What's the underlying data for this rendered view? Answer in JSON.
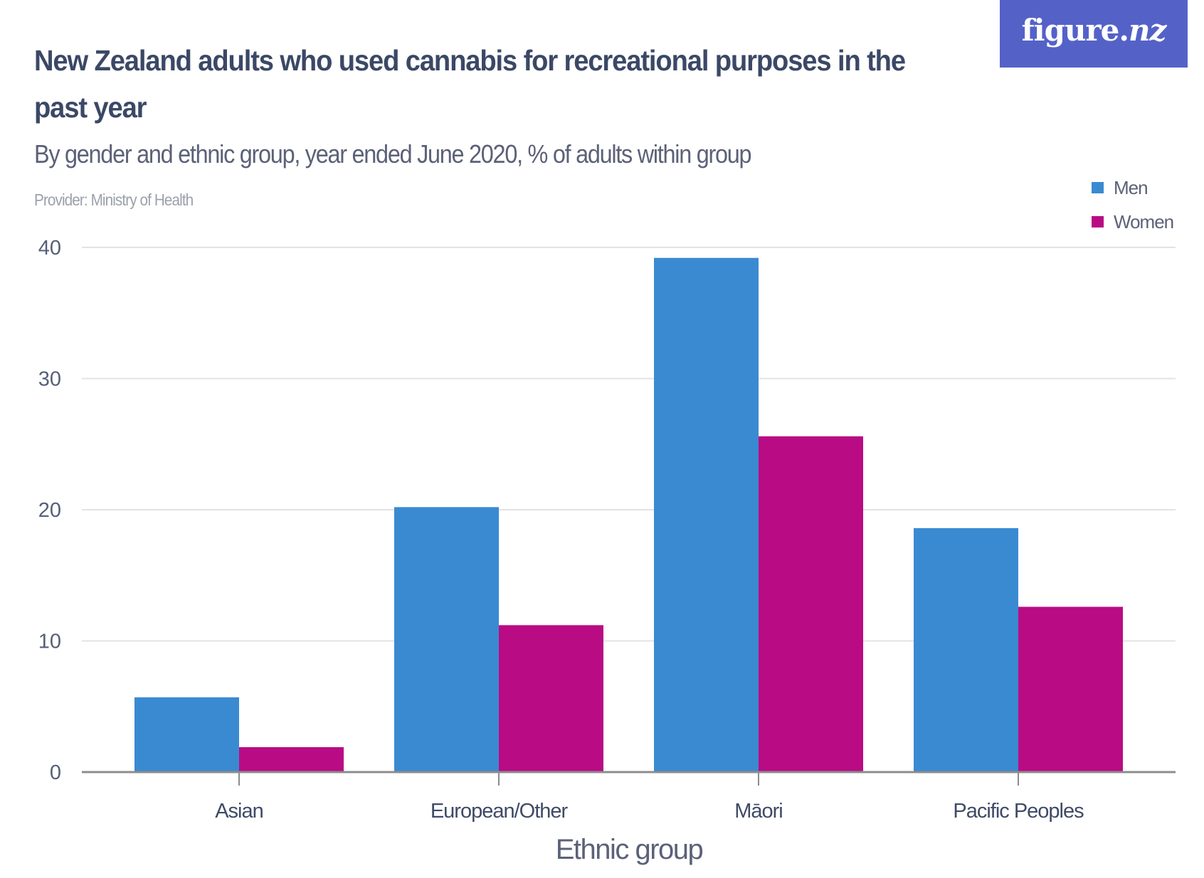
{
  "header": {
    "title": "New Zealand adults who used cannabis for recreational purposes in the past year",
    "subtitle": "By gender and ethnic group, year ended June 2020, % of adults within group",
    "provider": "Provider: Ministry of Health",
    "logo_main": "figure.",
    "logo_suffix": "nz"
  },
  "colors": {
    "men": "#3a8ad2",
    "women": "#b90b84",
    "logo_bg": "#5462c8",
    "gridline": "#e3e3e3",
    "axis": "#8c8c8c"
  },
  "chart_data": {
    "type": "bar",
    "title": "New Zealand adults who used cannabis for recreational purposes in the past year",
    "subtitle": "By gender and ethnic group, year ended June 2020, % of adults within group",
    "xlabel": "Ethnic group",
    "ylabel": "",
    "categories": [
      "Asian",
      "European/Other",
      "Māori",
      "Pacific Peoples"
    ],
    "series": [
      {
        "name": "Men",
        "values": [
          5.7,
          20.2,
          39.2,
          18.6
        ]
      },
      {
        "name": "Women",
        "values": [
          1.9,
          11.2,
          25.6,
          12.6
        ]
      }
    ],
    "ylim": [
      0,
      40
    ],
    "yticks": [
      0,
      10,
      20,
      30,
      40
    ],
    "ytick_labels": [
      "0",
      "10",
      "20",
      "30",
      "40"
    ],
    "grid": true,
    "legend": {
      "position": "top-right",
      "entries": [
        "Men",
        "Women"
      ]
    }
  }
}
